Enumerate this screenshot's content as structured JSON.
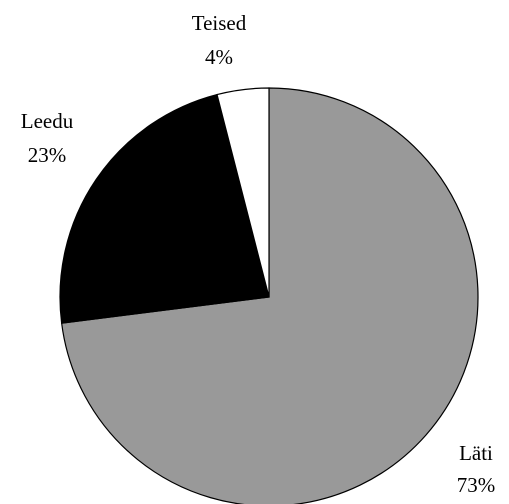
{
  "chart_data": {
    "type": "pie",
    "title": "",
    "slices": [
      {
        "label": "Läti",
        "value": 73,
        "value_label": "73%",
        "color": "#999999"
      },
      {
        "label": "Leedu",
        "value": 23,
        "value_label": "23%",
        "color": "#000000"
      },
      {
        "label": "Teised",
        "value": 4,
        "value_label": "4%",
        "color": "#ffffff"
      }
    ],
    "start": "12 o'clock",
    "direction": "clockwise",
    "legend": "none"
  }
}
